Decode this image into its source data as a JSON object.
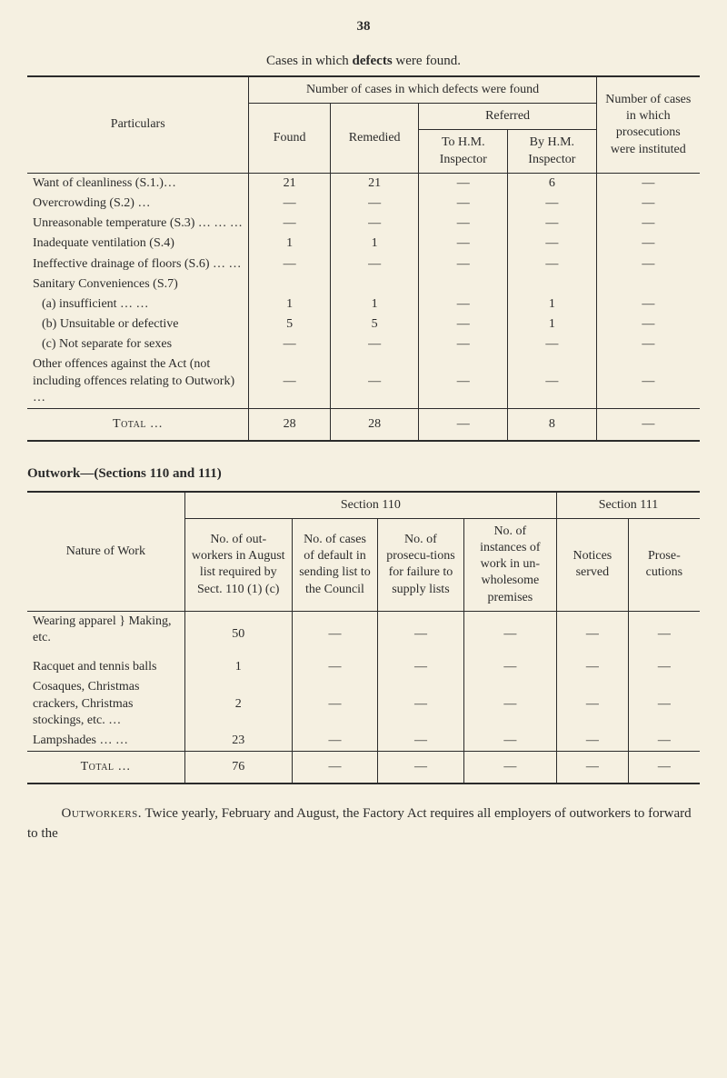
{
  "pageNumber": "38",
  "table1": {
    "title": "Cases in which defects were found.",
    "headers": {
      "particulars": "Particulars",
      "numberCases": "Number of cases in which defects were found",
      "found": "Found",
      "remedied": "Remedied",
      "referred": "Referred",
      "toHM": "To H.M. Inspector",
      "byHM": "By H.M. Inspector",
      "prosecutions": "Number of cases in which prosecutions were instituted"
    },
    "rows": [
      {
        "label": "Want of cleanliness (S.1.)…",
        "found": "21",
        "remedied": "21",
        "toHM": "—",
        "byHM": "6",
        "pros": "—"
      },
      {
        "label": "Overcrowding (S.2)   …",
        "found": "—",
        "remedied": "—",
        "toHM": "—",
        "byHM": "—",
        "pros": "—"
      },
      {
        "label": "Unreasonable temperature (S.3)        …   …   …",
        "found": "—",
        "remedied": "—",
        "toHM": "—",
        "byHM": "—",
        "pros": "—"
      },
      {
        "label": "Inadequate ventilation (S.4)",
        "found": "1",
        "remedied": "1",
        "toHM": "—",
        "byHM": "—",
        "pros": "—"
      },
      {
        "label": "Ineffective drainage of floors (S.6)    …   …",
        "found": "—",
        "remedied": "—",
        "toHM": "—",
        "byHM": "—",
        "pros": "—"
      },
      {
        "label": "Sanitary Conveniences (S.7)",
        "found": "",
        "remedied": "",
        "toHM": "",
        "byHM": "",
        "pros": ""
      },
      {
        "label": "(a) insufficient   …   …",
        "indent": true,
        "found": "1",
        "remedied": "1",
        "toHM": "—",
        "byHM": "1",
        "pros": "—"
      },
      {
        "label": "(b) Unsuitable or defective",
        "indent": true,
        "found": "5",
        "remedied": "5",
        "toHM": "—",
        "byHM": "1",
        "pros": "—"
      },
      {
        "label": "(c) Not separate for sexes",
        "indent": true,
        "found": "—",
        "remedied": "—",
        "toHM": "—",
        "byHM": "—",
        "pros": "—"
      },
      {
        "label": "Other offences against the Act (not including offences relating to Outwork)   …",
        "found": "—",
        "remedied": "—",
        "toHM": "—",
        "byHM": "—",
        "pros": "—"
      }
    ],
    "total": {
      "label": "Total   …",
      "found": "28",
      "remedied": "28",
      "toHM": "—",
      "byHM": "8",
      "pros": "—"
    }
  },
  "outworkHeading": "Outwork—(Sections 110 and 111)",
  "table2": {
    "headers": {
      "nature": "Nature of Work",
      "sec110": "Section 110",
      "sec111": "Section 111",
      "col1": "No. of out-workers in August list required by Sect. 110 (1) (c)",
      "col2": "No. of cases of default in sending list to the Council",
      "col3": "No. of prosecu-tions for failure to supply lists",
      "col4": "No. of instances of work in un-wholesome premises",
      "col5": "Notices served",
      "col6": "Prose-cutions"
    },
    "rows": [
      {
        "label": "Wearing apparel } Making, etc.",
        "c1": "50",
        "c2": "—",
        "c3": "—",
        "c4": "—",
        "c5": "—",
        "c6": "—"
      },
      {
        "label": "Racquet and tennis balls",
        "c1": "1",
        "c2": "—",
        "c3": "—",
        "c4": "—",
        "c5": "—",
        "c6": "—"
      },
      {
        "label": "Cosaques, Christmas crackers, Christmas stockings, etc.   …",
        "c1": "2",
        "c2": "—",
        "c3": "—",
        "c4": "—",
        "c5": "—",
        "c6": "—"
      },
      {
        "label": "Lampshades …   …",
        "c1": "23",
        "c2": "—",
        "c3": "—",
        "c4": "—",
        "c5": "—",
        "c6": "—"
      }
    ],
    "total": {
      "label": "Total   …",
      "c1": "76",
      "c2": "—",
      "c3": "—",
      "c4": "—",
      "c5": "—",
      "c6": "—"
    }
  },
  "bodyText": {
    "lead": "Outworkers.",
    "rest": "  Twice yearly, February and August, the Factory Act requires all employers of outworkers to forward to the"
  }
}
